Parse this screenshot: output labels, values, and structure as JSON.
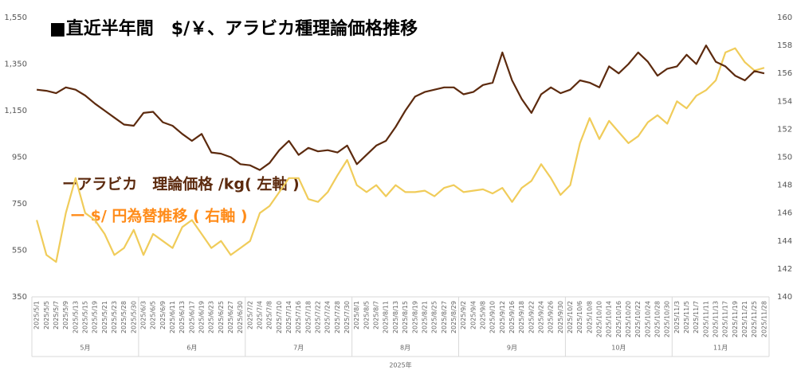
{
  "chart_data": {
    "type": "line",
    "title": "■直近半年間　$/￥、アラビカ種理論価格推移",
    "x_group_labels": [
      "5月",
      "6月",
      "7月",
      "8月",
      "9月",
      "10月",
      "11月"
    ],
    "x_axis_label": "2025年",
    "categories": [
      "2025/5/1",
      "2025/5/5",
      "2025/5/7",
      "2025/5/9",
      "2025/5/13",
      "2025/5/15",
      "2025/5/19",
      "2025/5/21",
      "2025/5/23",
      "2025/5/28",
      "2025/5/30",
      "2025/6/3",
      "2025/6/5",
      "2025/6/9",
      "2025/6/11",
      "2025/6/13",
      "2025/6/17",
      "2025/6/19",
      "2025/6/23",
      "2025/6/25",
      "2025/6/27",
      "2025/6/30",
      "2025/7/2",
      "2025/7/4",
      "2025/7/8",
      "2025/7/10",
      "2025/7/14",
      "2025/7/16",
      "2025/7/18",
      "2025/7/22",
      "2025/7/24",
      "2025/7/28",
      "2025/7/30",
      "2025/8/1",
      "2025/8/5",
      "2025/8/7",
      "2025/8/11",
      "2025/8/13",
      "2025/8/15",
      "2025/8/19",
      "2025/8/21",
      "2025/8/25",
      "2025/8/27",
      "2025/8/29",
      "2025/9/2",
      "2025/9/4",
      "2025/9/8",
      "2025/9/10",
      "2025/9/12",
      "2025/9/16",
      "2025/9/18",
      "2025/9/22",
      "2025/9/24",
      "2025/9/26",
      "2025/9/30",
      "2025/10/2",
      "2025/10/6",
      "2025/10/8",
      "2025/10/10",
      "2025/10/14",
      "2025/10/16",
      "2025/10/20",
      "2025/10/22",
      "2025/10/24",
      "2025/10/28",
      "2025/10/30",
      "2025/11/3",
      "2025/11/5",
      "2025/11/7",
      "2025/11/11",
      "2025/11/13",
      "2025/11/17",
      "2025/11/19",
      "2025/11/21",
      "2025/11/25",
      "2025/11/28"
    ],
    "series": [
      {
        "name": "ーアラビカ　理論価格 /kg( 左軸 )",
        "color": "#5c2a0e",
        "axis": "y",
        "values": [
          1240,
          1235,
          1225,
          1250,
          1240,
          1215,
          1180,
          1150,
          1120,
          1090,
          1085,
          1140,
          1145,
          1100,
          1085,
          1050,
          1020,
          1050,
          970,
          965,
          950,
          920,
          915,
          895,
          925,
          980,
          1020,
          960,
          990,
          975,
          980,
          970,
          1000,
          920,
          960,
          1000,
          1020,
          1080,
          1150,
          1210,
          1230,
          1240,
          1250,
          1250,
          1220,
          1230,
          1260,
          1270,
          1400,
          1280,
          1200,
          1140,
          1220,
          1250,
          1225,
          1240,
          1280,
          1270,
          1250,
          1340,
          1310,
          1350,
          1400,
          1360,
          1300,
          1330,
          1340,
          1390,
          1350,
          1430,
          1360,
          1340,
          1300,
          1280,
          1320,
          1310
        ]
      },
      {
        "name": "ー $/ 円為替推移 ( 右軸 )",
        "color": "#f0cc5a",
        "axis": "y2",
        "values": [
          145.5,
          143,
          142.5,
          146,
          148.5,
          146,
          145.5,
          144.5,
          143,
          143.5,
          144.8,
          143,
          144.5,
          144,
          143.5,
          145,
          145.5,
          144.5,
          143.5,
          144,
          143,
          143.5,
          144,
          146,
          146.5,
          147.5,
          148.5,
          148.5,
          147,
          146.8,
          147.5,
          148.7,
          149.8,
          148,
          147.5,
          148,
          147.2,
          148,
          147.5,
          147.5,
          147.6,
          147.2,
          147.8,
          148,
          147.5,
          147.6,
          147.7,
          147.4,
          147.8,
          146.8,
          147.8,
          148.3,
          149.5,
          148.5,
          147.3,
          148,
          151,
          152.8,
          151.3,
          152.6,
          151.8,
          151,
          151.5,
          152.5,
          153,
          152.4,
          154,
          153.5,
          154.4,
          154.8,
          155.5,
          157.5,
          157.8,
          156.8,
          156.2,
          156.4
        ]
      }
    ],
    "ylim": [
      350,
      1550
    ],
    "yticks": [
      {
        "value": 350,
        "label": "350"
      },
      {
        "value": 550,
        "label": "550"
      },
      {
        "value": 750,
        "label": "750"
      },
      {
        "value": 950,
        "label": "950"
      },
      {
        "value": 1150,
        "label": "1,150"
      },
      {
        "value": 1350,
        "label": "1,350"
      },
      {
        "value": 1550,
        "label": "1,550"
      }
    ],
    "y2lim": [
      140,
      160
    ],
    "y2ticks": [
      140,
      142,
      144,
      146,
      148,
      150,
      152,
      154,
      156,
      158,
      160
    ],
    "grid": false
  }
}
